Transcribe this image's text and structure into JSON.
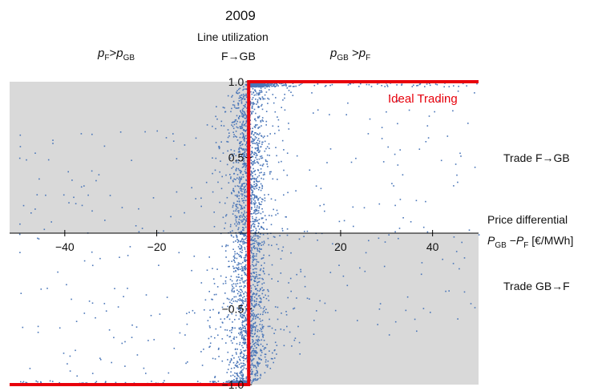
{
  "chart_data": {
    "type": "scatter",
    "title": "2009",
    "subtitle_line1": "Line utilization",
    "subtitle_line2": "F→GB",
    "xlim": [
      -52,
      50
    ],
    "ylim": [
      -1.0,
      1.0
    ],
    "x_ticks": [
      -40,
      -20,
      20,
      40
    ],
    "x_tick_labels": [
      "−40",
      "−20",
      "20",
      "40"
    ],
    "y_ticks": [
      1.0,
      0.5,
      -0.5,
      -1.0
    ],
    "y_tick_labels": [
      "1.0",
      "0.5",
      "−0.5",
      "−1.0"
    ],
    "xlabel_line1": "Price differential",
    "xlabel_line2_unit": "[€/MWh]",
    "region_left": {
      "var1": "p",
      "sub1": "F",
      "op": ">",
      "var2": "p",
      "sub2": "GB"
    },
    "region_right": {
      "var1": "p",
      "sub1": "GB",
      "op": ">",
      "var2": "p",
      "sub2": "F"
    },
    "axis_var": {
      "var1": "P",
      "sub1": "GB",
      "op": "−",
      "var2": "P",
      "sub2": "F"
    },
    "right_labels": [
      "Trade  F→GB",
      "Trade  GB→F"
    ],
    "ideal_label": "Ideal Trading",
    "ideal_line": {
      "x": [
        -52,
        0,
        0,
        50
      ],
      "y": [
        -1.0,
        -1.0,
        1.0,
        1.0
      ]
    },
    "shaded_regions": [
      {
        "x": [
          -52,
          0
        ],
        "y": [
          0,
          1.0
        ]
      },
      {
        "x": [
          0,
          50
        ],
        "y": [
          -1.0,
          0
        ]
      }
    ],
    "point_count_approx": 3500,
    "point_distribution": "dense near x=0, y spread over [-1,1]; clusters at y=1 for x>0 and y=-1 for x<0",
    "colors": {
      "points": "#4a76b8",
      "ideal": "#e8000b",
      "shade": "#d9d9d9",
      "axis": "#000000"
    }
  }
}
